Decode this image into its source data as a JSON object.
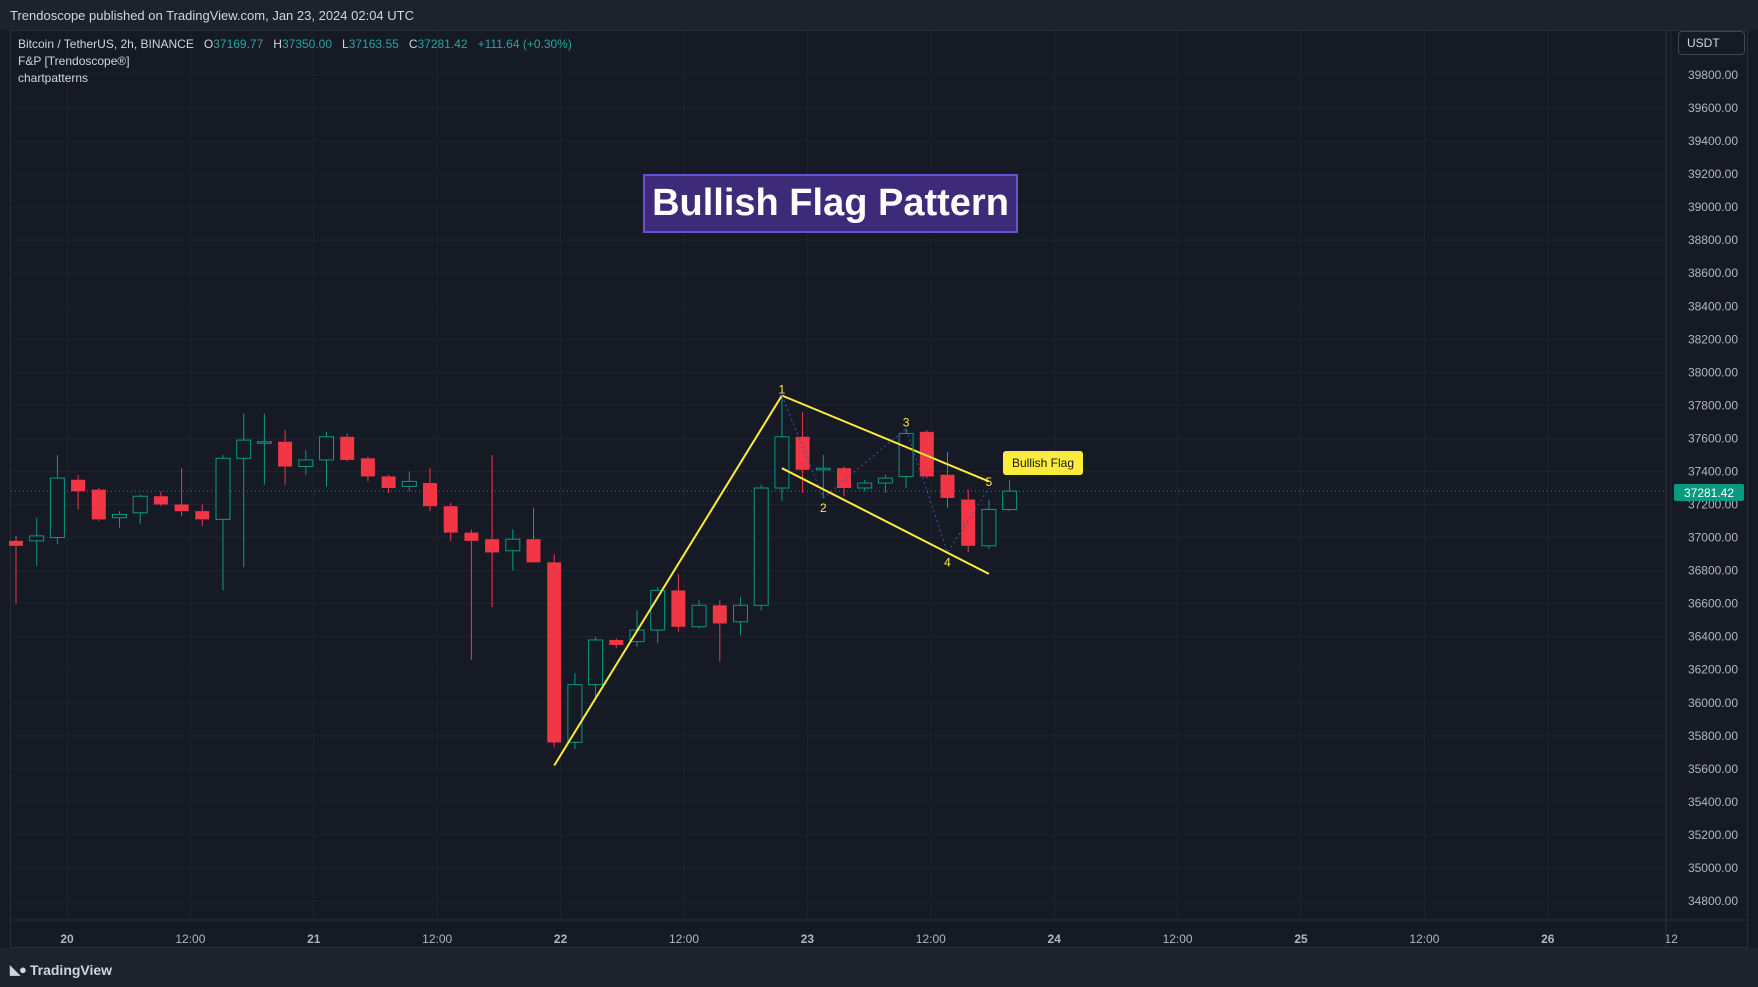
{
  "header": {
    "publisher_line": "Trendoscope published on TradingView.com, Jan 23, 2024 02:04 UTC"
  },
  "legend": {
    "symbol": "Bitcoin / TetherUS, 2h, BINANCE",
    "open_label": "O",
    "open": "37169.77",
    "high_label": "H",
    "high": "37350.00",
    "low_label": "L",
    "low": "37163.55",
    "close_label": "C",
    "close": "37281.42",
    "change": "+111.64 (+0.30%)",
    "indicator1": "F&P [Trendoscope®]",
    "indicator2": "chartpatterns"
  },
  "currency_button": "USDT",
  "footer": {
    "brand": "TradingView"
  },
  "colors": {
    "up": "#089981",
    "down": "#f23645",
    "pattern": "#ffeb3b",
    "title_bg": "#3d2b7a",
    "title_border": "#6a4fd0",
    "background": "#161a25"
  },
  "chart_data": {
    "type": "candlestick",
    "title": "Bullish Flag Pattern",
    "current_price": "37281.42",
    "y_ticks": [
      "39800.00",
      "39600.00",
      "39400.00",
      "39200.00",
      "39000.00",
      "38800.00",
      "38600.00",
      "38400.00",
      "38200.00",
      "38000.00",
      "37800.00",
      "37600.00",
      "37400.00",
      "37200.00",
      "37000.00",
      "36800.00",
      "36600.00",
      "36400.00",
      "36200.00",
      "36000.00",
      "35800.00",
      "35600.00",
      "35400.00",
      "35200.00",
      "35000.00",
      "34800.00"
    ],
    "x_ticks": [
      "20",
      "12:00",
      "21",
      "12:00",
      "22",
      "12:00",
      "23",
      "12:00",
      "24",
      "12:00",
      "25",
      "12:00",
      "26",
      "12"
    ],
    "ylim": [
      34700,
      39950
    ],
    "candles": [
      {
        "o": 36980,
        "h": 37010,
        "l": 36600,
        "c": 36950
      },
      {
        "o": 36980,
        "h": 37120,
        "l": 36830,
        "c": 37010
      },
      {
        "o": 37000,
        "h": 37500,
        "l": 36960,
        "c": 37360
      },
      {
        "o": 37350,
        "h": 37380,
        "l": 37170,
        "c": 37280
      },
      {
        "o": 37290,
        "h": 37300,
        "l": 37100,
        "c": 37110
      },
      {
        "o": 37120,
        "h": 37160,
        "l": 37060,
        "c": 37140
      },
      {
        "o": 37150,
        "h": 37260,
        "l": 37080,
        "c": 37250
      },
      {
        "o": 37250,
        "h": 37280,
        "l": 37190,
        "c": 37200
      },
      {
        "o": 37200,
        "h": 37420,
        "l": 37130,
        "c": 37160
      },
      {
        "o": 37160,
        "h": 37200,
        "l": 37070,
        "c": 37110
      },
      {
        "o": 37110,
        "h": 37500,
        "l": 36680,
        "c": 37480
      },
      {
        "o": 37480,
        "h": 37750,
        "l": 36820,
        "c": 37590
      },
      {
        "o": 37580,
        "h": 37750,
        "l": 37320,
        "c": 37580
      },
      {
        "o": 37580,
        "h": 37650,
        "l": 37320,
        "c": 37430
      },
      {
        "o": 37430,
        "h": 37530,
        "l": 37380,
        "c": 37470
      },
      {
        "o": 37470,
        "h": 37640,
        "l": 37310,
        "c": 37610
      },
      {
        "o": 37610,
        "h": 37630,
        "l": 37460,
        "c": 37470
      },
      {
        "o": 37480,
        "h": 37490,
        "l": 37340,
        "c": 37370
      },
      {
        "o": 37370,
        "h": 37380,
        "l": 37270,
        "c": 37300
      },
      {
        "o": 37310,
        "h": 37400,
        "l": 37280,
        "c": 37340
      },
      {
        "o": 37330,
        "h": 37420,
        "l": 37160,
        "c": 37190
      },
      {
        "o": 37190,
        "h": 37210,
        "l": 36980,
        "c": 37030
      },
      {
        "o": 37030,
        "h": 37050,
        "l": 36260,
        "c": 36980
      },
      {
        "o": 36990,
        "h": 37500,
        "l": 36580,
        "c": 36910
      },
      {
        "o": 36920,
        "h": 37050,
        "l": 36800,
        "c": 36990
      },
      {
        "o": 36990,
        "h": 37180,
        "l": 36860,
        "c": 36850
      },
      {
        "o": 36850,
        "h": 36900,
        "l": 35730,
        "c": 35760
      },
      {
        "o": 35760,
        "h": 36180,
        "l": 35720,
        "c": 36110
      },
      {
        "o": 36110,
        "h": 36400,
        "l": 36020,
        "c": 36380
      },
      {
        "o": 36380,
        "h": 36390,
        "l": 36330,
        "c": 36350
      },
      {
        "o": 36370,
        "h": 36560,
        "l": 36340,
        "c": 36440
      },
      {
        "o": 36440,
        "h": 36700,
        "l": 36360,
        "c": 36680
      },
      {
        "o": 36680,
        "h": 36780,
        "l": 36430,
        "c": 36460
      },
      {
        "o": 36460,
        "h": 36620,
        "l": 36450,
        "c": 36590
      },
      {
        "o": 36590,
        "h": 36620,
        "l": 36250,
        "c": 36480
      },
      {
        "o": 36490,
        "h": 36640,
        "l": 36410,
        "c": 36590
      },
      {
        "o": 36590,
        "h": 37320,
        "l": 36560,
        "c": 37300
      },
      {
        "o": 37300,
        "h": 37860,
        "l": 37220,
        "c": 37610
      },
      {
        "o": 37610,
        "h": 37760,
        "l": 37270,
        "c": 37410
      },
      {
        "o": 37410,
        "h": 37500,
        "l": 37240,
        "c": 37420
      },
      {
        "o": 37420,
        "h": 37430,
        "l": 37250,
        "c": 37300
      },
      {
        "o": 37300,
        "h": 37350,
        "l": 37280,
        "c": 37330
      },
      {
        "o": 37330,
        "h": 37380,
        "l": 37270,
        "c": 37360
      },
      {
        "o": 37370,
        "h": 37660,
        "l": 37300,
        "c": 37630
      },
      {
        "o": 37640,
        "h": 37650,
        "l": 37360,
        "c": 37370
      },
      {
        "o": 37380,
        "h": 37520,
        "l": 37180,
        "c": 37240
      },
      {
        "o": 37230,
        "h": 37290,
        "l": 36910,
        "c": 36950
      },
      {
        "o": 36950,
        "h": 37230,
        "l": 36930,
        "c": 37170
      },
      {
        "o": 37170,
        "h": 37350,
        "l": 37160,
        "c": 37281
      }
    ],
    "pattern": {
      "name": "Bullish Flag",
      "pole": [
        {
          "candle": 26,
          "price": 35620
        },
        {
          "candle": 37,
          "price": 37860
        }
      ],
      "upper": [
        {
          "candle": 37,
          "price": 37860
        },
        {
          "candle": 47,
          "price": 37340
        }
      ],
      "lower": [
        {
          "candle": 37,
          "price": 37420
        },
        {
          "candle": 47,
          "price": 36780
        }
      ],
      "pivots": [
        {
          "label": "1",
          "candle": 37,
          "price": 37860
        },
        {
          "label": "2",
          "candle": 39,
          "price": 37240
        },
        {
          "label": "3",
          "candle": 43,
          "price": 37660
        },
        {
          "label": "4",
          "candle": 45,
          "price": 36910
        },
        {
          "label": "5",
          "candle": 47,
          "price": 37300
        }
      ]
    }
  }
}
